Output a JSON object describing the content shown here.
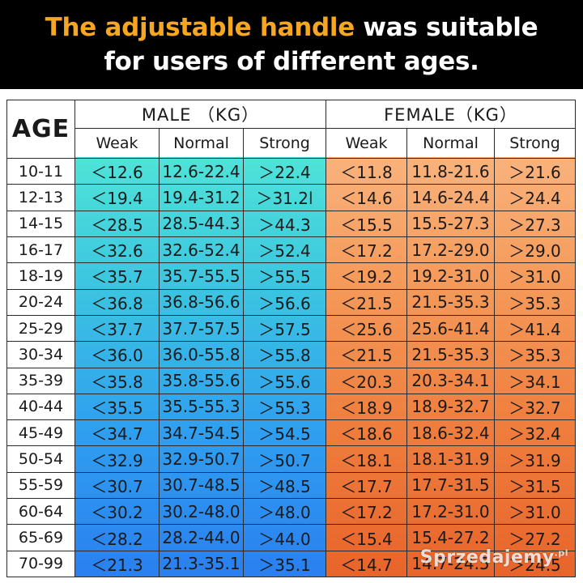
{
  "header": {
    "highlight": "The adjustable handle",
    "rest1": " was suitable",
    "line2": "for users of different ages."
  },
  "table": {
    "age_header": "AGE",
    "male_header": "MALE （KG）",
    "female_header": "FEMALE（KG）",
    "sub_headers": [
      "Weak",
      "Normal",
      "Strong",
      "Weak",
      "Normal",
      "Strong"
    ],
    "rows": [
      [
        "10-11",
        "＜12.6",
        "12.6-22.4",
        "＞22.4",
        "＜11.8",
        "11.8-21.6",
        "＞21.6"
      ],
      [
        "12-13",
        "＜19.4",
        "19.4-31.2",
        "＞31.2l",
        "＜14.6",
        "14.6-24.4",
        "＞24.4"
      ],
      [
        "14-15",
        "＜28.5",
        "28.5-44.3",
        "＞44.3",
        "＜15.5",
        "15.5-27.3",
        "＞27.3"
      ],
      [
        "16-17",
        "＜32.6",
        "32.6-52.4",
        "＞52.4",
        "＜17.2",
        "17.2-29.0",
        "＞29.0"
      ],
      [
        "18-19",
        "＜35.7",
        "35.7-55.5",
        "＞55.5",
        "＜19.2",
        "19.2-31.0",
        "＞31.0"
      ],
      [
        "20-24",
        "＜36.8",
        "36.8-56.6",
        "＞56.6",
        "＜21.5",
        "21.5-35.3",
        "＞35.3"
      ],
      [
        "25-29",
        "＜37.7",
        "37.7-57.5",
        "＞57.5",
        "＜25.6",
        "25.6-41.4",
        "＞41.4"
      ],
      [
        "30-34",
        "＜36.0",
        "36.0-55.8",
        "＞55.8",
        "＜21.5",
        "21.5-35.3",
        "＞35.3"
      ],
      [
        "35-39",
        "＜35.8",
        "35.8-55.6",
        "＞55.6",
        "＜20.3",
        "20.3-34.1",
        "＞34.1"
      ],
      [
        "40-44",
        "＜35.5",
        "35.5-55.3",
        "＞55.3",
        "＜18.9",
        "18.9-32.7",
        "＞32.7"
      ],
      [
        "45-49",
        "＜34.7",
        "34.7-54.5",
        "＞54.5",
        "＜18.6",
        "18.6-32.4",
        "＞32.4"
      ],
      [
        "50-54",
        "＜32.9",
        "32.9-50.7",
        "＞50.7",
        "＜18.1",
        "18.1-31.9",
        "＞31.9"
      ],
      [
        "55-59",
        "＜30.7",
        "30.7-48.5",
        "＞48.5",
        "＜17.7",
        "17.7-31.5",
        "＞31.5"
      ],
      [
        "60-64",
        "＜30.2",
        "30.2-48.0",
        "＞48.0",
        "＜17.2",
        "17.2-31.0",
        "＞31.0"
      ],
      [
        "65-69",
        "＜28.2",
        "28.2-44.0",
        "＞44.0",
        "＜15.4",
        "15.4-27.2",
        "＞27.2"
      ],
      [
        "70-99",
        "＜21.3",
        "21.3-35.1",
        "＞35.1",
        "＜14.7",
        "14.7-24.5",
        "＞24.5"
      ]
    ]
  },
  "watermark": {
    "text": "Sprzedajemy",
    "suffix": ".pl"
  },
  "colors": {
    "banner_bg": "#000000",
    "highlight": "#f5a623",
    "male_top": "#4fe3d8",
    "male_bottom": "#2a7ff0",
    "female_top": "#f9b27c",
    "female_bottom": "#e8642a"
  }
}
